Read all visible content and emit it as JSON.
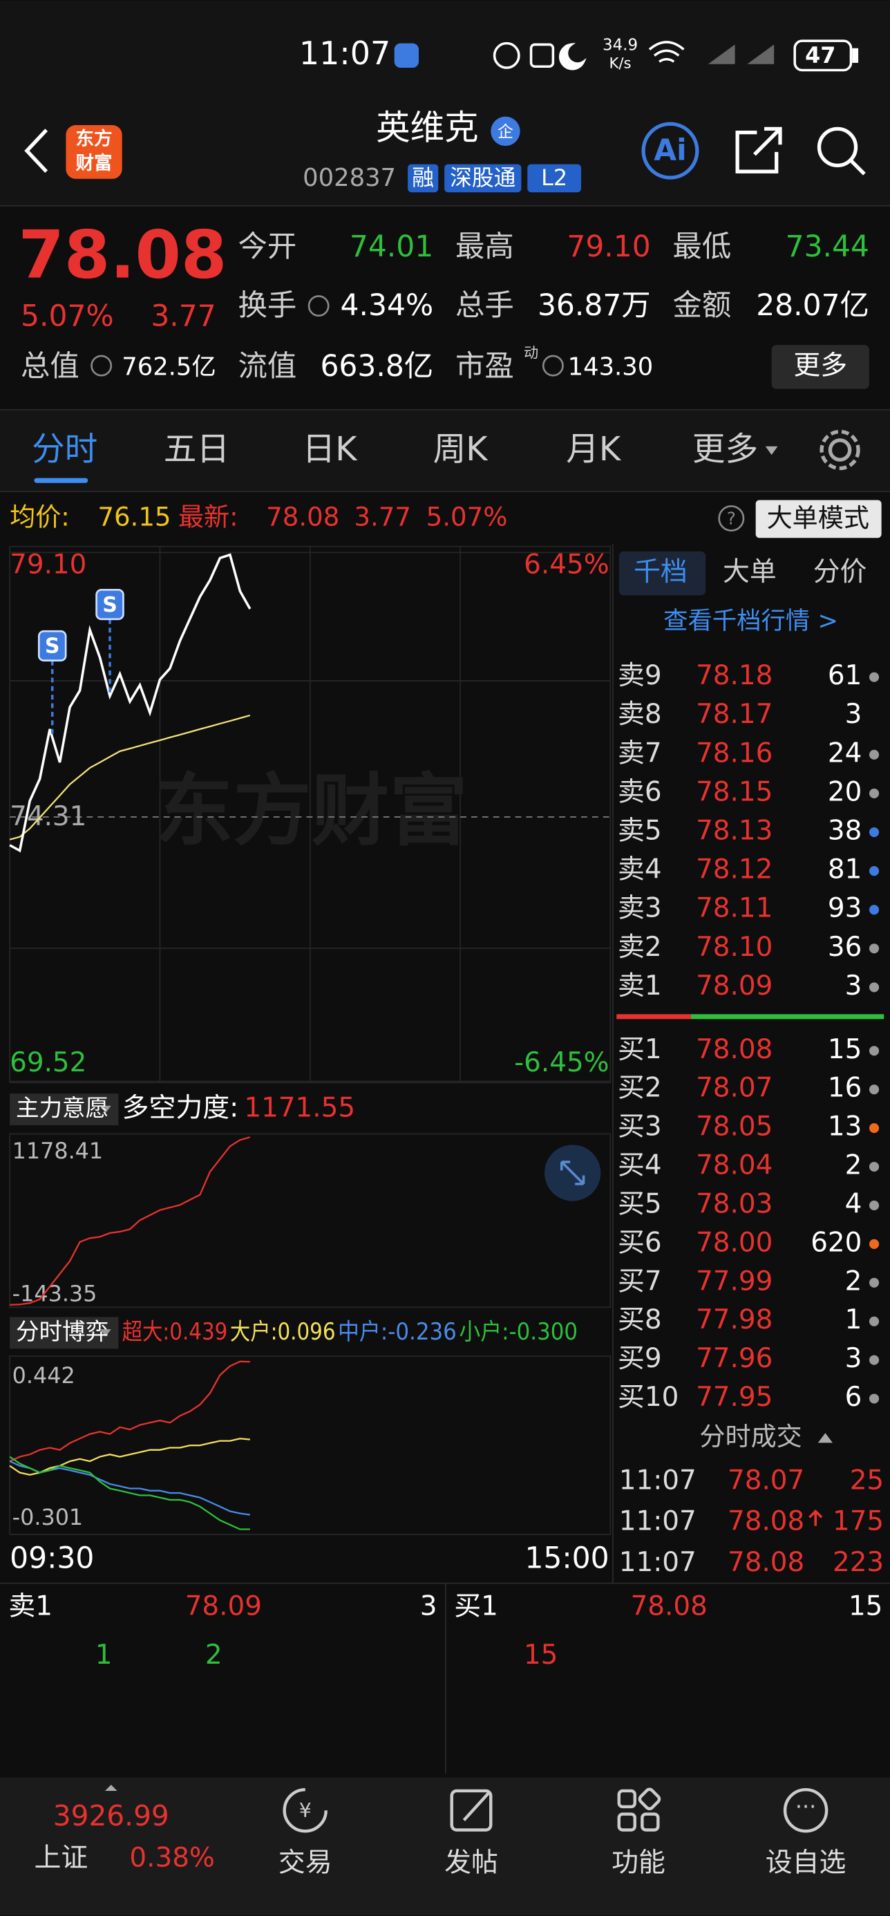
{
  "status_bar": {
    "time": "11:07",
    "speed": "34.9",
    "speed_unit": "K/s",
    "battery": "47"
  },
  "header": {
    "logo": [
      "东方",
      "财富"
    ],
    "name": "英维克",
    "badge": "企",
    "code": "002837",
    "tags": [
      "融",
      "深股通",
      "L2"
    ]
  },
  "quote": {
    "price": "78.08",
    "change_pct": "5.07%",
    "change": "3.77",
    "stats": [
      {
        "label": "今开",
        "value": "74.01",
        "color": "#2fbf3c"
      },
      {
        "label": "最高",
        "value": "79.10",
        "color": "#e8322f"
      },
      {
        "label": "最低",
        "value": "73.44",
        "color": "#2fbf3c"
      },
      {
        "label": "换手",
        "value": "4.34%",
        "color": "#ffffff"
      },
      {
        "label": "总手",
        "value": "36.87万",
        "color": "#ffffff"
      },
      {
        "label": "金额",
        "value": "28.07亿",
        "color": "#ffffff"
      }
    ],
    "market_cap_label": "总值",
    "market_cap": "762.5亿",
    "float_cap_label": "流值",
    "float_cap": "663.8亿",
    "pe_label": "市盈",
    "pe_sup": "动",
    "pe": "143.30",
    "more": "更多"
  },
  "tabs": [
    "分时",
    "五日",
    "日K",
    "周K",
    "月K",
    "更多"
  ],
  "info_bar": {
    "avg_label": "均价:",
    "avg": "76.15",
    "latest_label": "最新:",
    "latest": "78.08",
    "change": "3.77",
    "pct": "5.07%",
    "help": "?",
    "mode": "大单模式"
  },
  "intraday": {
    "watermark": "东方财富",
    "xlim": [
      0,
      240
    ],
    "xticks": [
      {
        "value": 0,
        "label": "09:30"
      },
      {
        "value": 240,
        "label": "15:00"
      }
    ],
    "ylim": [
      69.52,
      79.1
    ],
    "yticks": [
      {
        "value": 79.1,
        "label": "79.10"
      },
      {
        "value": 74.31,
        "label": "74.31"
      },
      {
        "value": 69.52,
        "label": "69.52"
      }
    ],
    "pct_labels": [
      "6.45%",
      "-6.45%"
    ],
    "x": [
      0,
      4,
      8,
      12,
      16,
      20,
      24,
      28,
      32,
      36,
      40,
      44,
      48,
      52,
      56,
      60,
      64,
      68,
      72,
      76,
      80,
      84,
      88,
      92,
      96
    ],
    "price": {
      "color": "#ffffff",
      "values": [
        73.8,
        73.7,
        74.6,
        75.0,
        75.9,
        75.3,
        76.3,
        76.6,
        77.7,
        77.2,
        76.5,
        76.9,
        76.4,
        76.7,
        76.2,
        76.8,
        77.0,
        77.5,
        77.9,
        78.3,
        78.6,
        79.0,
        79.06,
        78.4,
        78.08
      ]
    },
    "average": {
      "color": "#f3e27a",
      "values": [
        73.9,
        73.95,
        74.1,
        74.3,
        74.5,
        74.7,
        74.9,
        75.05,
        75.2,
        75.3,
        75.4,
        75.5,
        75.55,
        75.6,
        75.65,
        75.7,
        75.75,
        75.8,
        75.85,
        75.9,
        75.95,
        76.0,
        76.05,
        76.1,
        76.15
      ]
    },
    "markers": [
      {
        "label": "S",
        "x": 17
      },
      {
        "label": "S",
        "x": 40
      }
    ]
  },
  "indicator1": {
    "menu": "主力意愿",
    "label": "多空力度:",
    "value": "1171.55",
    "ylim": [
      -143.35,
      1178.41
    ],
    "yticks": [
      {
        "value": 1178.41,
        "label": "1178.41"
      },
      {
        "value": -143.35,
        "label": "-143.35"
      }
    ],
    "color": "#e8322f",
    "values": [
      -143,
      -140,
      -130,
      -100,
      0,
      100,
      200,
      350,
      380,
      390,
      420,
      430,
      450,
      520,
      560,
      600,
      620,
      640,
      680,
      720,
      900,
      1000,
      1100,
      1150,
      1171.55
    ]
  },
  "indicator2": {
    "menu": "分时博弈",
    "ylim": [
      -0.301,
      0.442
    ],
    "yticks": [
      {
        "value": 0.442,
        "label": "0.442"
      },
      {
        "value": -0.301,
        "label": "-0.301"
      }
    ],
    "series": [
      {
        "name": "超大:0.439",
        "color": "#e8322f",
        "values": [
          0,
          0.02,
          0.03,
          0.05,
          0.06,
          0.05,
          0.08,
          0.1,
          0.12,
          0.13,
          0.12,
          0.15,
          0.14,
          0.16,
          0.17,
          0.18,
          0.17,
          0.2,
          0.22,
          0.25,
          0.3,
          0.38,
          0.42,
          0.44,
          0.439
        ]
      },
      {
        "name": "大户:0.096",
        "color": "#f3e05a",
        "values": [
          -0.02,
          -0.05,
          -0.06,
          -0.05,
          -0.03,
          -0.02,
          0,
          0.01,
          0,
          0.02,
          0.03,
          0.02,
          0.03,
          0.04,
          0.05,
          0.05,
          0.06,
          0.06,
          0.07,
          0.07,
          0.08,
          0.09,
          0.09,
          0.1,
          0.096
        ]
      },
      {
        "name": "中户:-0.236",
        "color": "#4a8be8",
        "values": [
          0,
          -0.02,
          -0.03,
          -0.05,
          -0.04,
          -0.03,
          -0.04,
          -0.05,
          -0.06,
          -0.08,
          -0.1,
          -0.11,
          -0.12,
          -0.12,
          -0.13,
          -0.13,
          -0.14,
          -0.14,
          -0.15,
          -0.16,
          -0.18,
          -0.2,
          -0.22,
          -0.23,
          -0.236
        ]
      },
      {
        "name": "小户:-0.300",
        "color": "#2fbf3c",
        "values": [
          0.02,
          -0.01,
          -0.03,
          -0.05,
          -0.04,
          -0.02,
          -0.03,
          -0.04,
          -0.05,
          -0.09,
          -0.12,
          -0.13,
          -0.14,
          -0.15,
          -0.15,
          -0.16,
          -0.17,
          -0.17,
          -0.18,
          -0.2,
          -0.23,
          -0.26,
          -0.28,
          -0.3,
          -0.3
        ]
      }
    ]
  },
  "order_book": {
    "tabs": [
      "千档",
      "大单",
      "分价"
    ],
    "link": "查看千档行情 >",
    "asks": [
      {
        "label": "卖9",
        "price": "78.18",
        "vol": "61",
        "dot": "#999"
      },
      {
        "label": "卖8",
        "price": "78.17",
        "vol": "3"
      },
      {
        "label": "卖7",
        "price": "78.16",
        "vol": "24",
        "dot": "#999"
      },
      {
        "label": "卖6",
        "price": "78.15",
        "vol": "20",
        "dot": "#999"
      },
      {
        "label": "卖5",
        "price": "78.13",
        "vol": "38",
        "dot": "#3d7be0"
      },
      {
        "label": "卖4",
        "price": "78.12",
        "vol": "81",
        "dot": "#3d7be0"
      },
      {
        "label": "卖3",
        "price": "78.11",
        "vol": "93",
        "dot": "#3d7be0"
      },
      {
        "label": "卖2",
        "price": "78.10",
        "vol": "36",
        "dot": "#999"
      },
      {
        "label": "卖1",
        "price": "78.09",
        "vol": "3",
        "dot": "#999"
      }
    ],
    "bids": [
      {
        "label": "买1",
        "price": "78.08",
        "vol": "15",
        "dot": "#999"
      },
      {
        "label": "买2",
        "price": "78.07",
        "vol": "16",
        "dot": "#999"
      },
      {
        "label": "买3",
        "price": "78.05",
        "vol": "13",
        "dot": "#f06a1e"
      },
      {
        "label": "买4",
        "price": "78.04",
        "vol": "2",
        "dot": "#999"
      },
      {
        "label": "买5",
        "price": "78.03",
        "vol": "4",
        "dot": "#999"
      },
      {
        "label": "买6",
        "price": "78.00",
        "vol": "620",
        "dot": "#f06a1e"
      },
      {
        "label": "买7",
        "price": "77.99",
        "vol": "2",
        "dot": "#999"
      },
      {
        "label": "买8",
        "price": "77.98",
        "vol": "1",
        "dot": "#999"
      },
      {
        "label": "买9",
        "price": "77.96",
        "vol": "3",
        "dot": "#999"
      },
      {
        "label": "买10",
        "price": "77.95",
        "vol": "6",
        "dot": "#999"
      }
    ],
    "trades_title": "分时成交",
    "trades": [
      {
        "time": "11:07",
        "price": "78.07",
        "vol": "25"
      },
      {
        "time": "11:07",
        "price": "78.08",
        "vol": "175"
      },
      {
        "time": "11:07",
        "price": "78.08",
        "vol": "223"
      }
    ]
  },
  "queue": {
    "sell": {
      "label": "卖1",
      "price": "78.09",
      "vol": "3",
      "orders": [
        "1",
        "2"
      ]
    },
    "buy": {
      "label": "买1",
      "price": "78.08",
      "vol": "15",
      "orders": [
        "15"
      ]
    }
  },
  "nav": {
    "index_name": "上证",
    "index_value": "3926.99",
    "index_pct": "0.38%",
    "items": [
      "交易",
      "发帖",
      "功能",
      "设自选"
    ]
  }
}
